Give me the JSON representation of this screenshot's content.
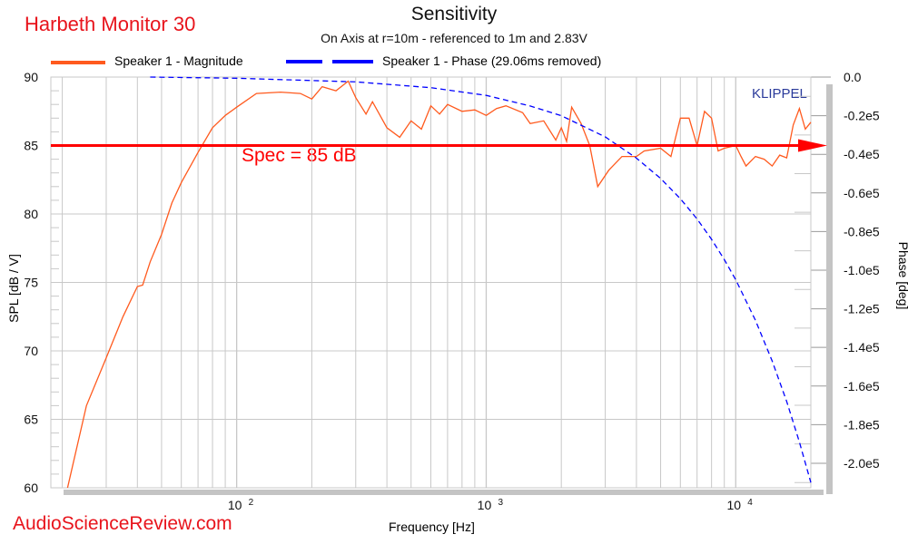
{
  "brand": "Harbeth Monitor 30",
  "watermark": "AudioScienceReview.com",
  "chart_data": {
    "type": "line",
    "title": "Sensitivity",
    "subtitle": "On Axis at r=10m - referenced to 1m and 2.83V",
    "xlabel": "Frequency [Hz]",
    "ylabel": "SPL [dB / V]",
    "y2label": "Phase [deg]",
    "xscale": "log",
    "xlim": [
      18,
      20000
    ],
    "ylim": [
      60,
      90
    ],
    "y2lim": [
      -212700,
      0
    ],
    "x_tick_labels": [
      "10 2",
      "10 3",
      "10 4"
    ],
    "x_ticks": [
      100,
      1000,
      10000
    ],
    "y_ticks": [
      60,
      65,
      70,
      75,
      80,
      85,
      90
    ],
    "y2_ticks": [
      0,
      -20000,
      -40000,
      -60000,
      -80000,
      -100000,
      -120000,
      -140000,
      -160000,
      -180000,
      -200000
    ],
    "y2_tick_labels": [
      "0.0",
      "-0.2e5",
      "-0.4e5",
      "-0.6e5",
      "-0.8e5",
      "-1.0e5",
      "-1.2e5",
      "-1.4e5",
      "-1.6e5",
      "-1.8e5",
      "-2.0e5"
    ],
    "grid": true,
    "annotation": {
      "text": "Spec = 85 dB",
      "value": 85,
      "color": "#ff0000"
    },
    "logo_text": "KLIPPEL",
    "series": [
      {
        "name": "Speaker 1 - Magnitude",
        "color": "#ff5a1e",
        "axis": "left",
        "x": [
          21,
          25,
          30,
          35,
          40,
          42,
          45,
          50,
          55,
          60,
          70,
          80,
          90,
          100,
          120,
          150,
          180,
          200,
          220,
          250,
          280,
          300,
          330,
          350,
          400,
          450,
          500,
          550,
          600,
          650,
          700,
          800,
          900,
          1000,
          1100,
          1200,
          1400,
          1500,
          1700,
          1900,
          2000,
          2100,
          2200,
          2400,
          2600,
          2800,
          3100,
          3500,
          4000,
          4300,
          5000,
          5500,
          6000,
          6500,
          7000,
          7500,
          8000,
          8500,
          9000,
          10000,
          10500,
          11000,
          12000,
          13000,
          14000,
          15000,
          16000,
          17000,
          18000,
          19000,
          20000
        ],
        "y": [
          60,
          66,
          69.5,
          72.5,
          74.7,
          74.8,
          76.5,
          78.5,
          80.8,
          82.3,
          84.5,
          86.3,
          87.2,
          87.8,
          88.8,
          88.9,
          88.8,
          88.4,
          89.3,
          89,
          89.7,
          88.5,
          87.3,
          88.2,
          86.3,
          85.6,
          86.8,
          86.2,
          87.9,
          87.3,
          88,
          87.5,
          87.6,
          87.2,
          87.7,
          87.9,
          87.4,
          86.6,
          86.8,
          85.4,
          86.3,
          85.3,
          87.8,
          86.6,
          85,
          82,
          83.2,
          84.2,
          84.2,
          84.6,
          84.8,
          84.2,
          87,
          87,
          85,
          87.5,
          87,
          84.6,
          84.8,
          85,
          84.2,
          83.5,
          84.2,
          84,
          83.5,
          84.3,
          84.1,
          86.5,
          87.7,
          86.2,
          86.7
        ]
      },
      {
        "name": "Speaker 1 - Phase (29.06ms removed)",
        "color": "#0000ff",
        "axis": "right",
        "dashed": true,
        "x": [
          45,
          100,
          300,
          600,
          1000,
          1500,
          2000,
          3000,
          4000,
          5000,
          6000,
          7000,
          8000,
          9000,
          10000,
          12000,
          14000,
          16000,
          18000,
          20000
        ],
        "y": [
          0,
          -600,
          -2500,
          -5500,
          -9500,
          -15000,
          -20000,
          -31000,
          -42000,
          -52500,
          -63000,
          -73500,
          -84000,
          -94500,
          -105000,
          -126000,
          -147000,
          -168000,
          -189000,
          -210000
        ]
      }
    ]
  }
}
